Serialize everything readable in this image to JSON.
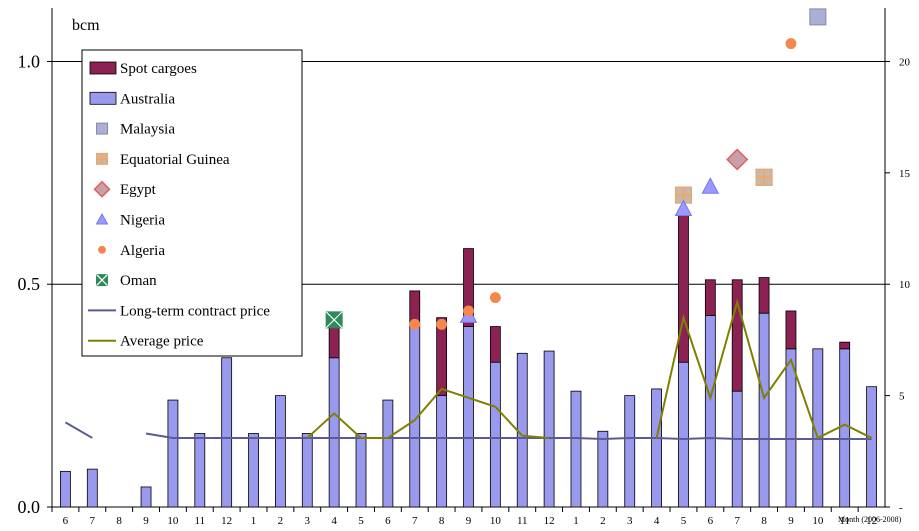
{
  "chart_data": {
    "type": "bar",
    "unit_label": "bcm",
    "x_axis_note": "Month (2006-2008)",
    "categories": [
      "6",
      "7",
      "8",
      "9",
      "10",
      "11",
      "12",
      "1",
      "2",
      "3",
      "4",
      "5",
      "6",
      "7",
      "8",
      "9",
      "10",
      "11",
      "12",
      "1",
      "2",
      "3",
      "4",
      "5",
      "6",
      "7",
      "8",
      "9",
      "10",
      "11",
      "12"
    ],
    "left_axis": {
      "ticks": [
        "0.0",
        "0.5",
        "1.0"
      ],
      "ylim": [
        0,
        1.12
      ]
    },
    "right_axis": {
      "ticks": [
        "-",
        "5",
        "10",
        "15",
        "20"
      ],
      "ylim": [
        0,
        22.4
      ]
    },
    "grid": true,
    "legend_position": "top-left",
    "stacked_series": [
      {
        "name": "Australia",
        "color": "#9999ee",
        "values": [
          0.08,
          0.085,
          0,
          0.045,
          0.24,
          0.165,
          0.335,
          0.165,
          0.25,
          0.165,
          0.335,
          0.165,
          0.24,
          0.405,
          0.25,
          0.405,
          0.325,
          0.345,
          0.35,
          0.26,
          0.17,
          0.25,
          0.265,
          0.325,
          0.43,
          0.26,
          0.435,
          0.355,
          0.355,
          0.355,
          0.27
        ]
      },
      {
        "name": "Spot cargoes",
        "color": "#8b2252",
        "values": [
          0,
          0,
          0,
          0,
          0,
          0,
          0,
          0,
          0,
          0,
          0.075,
          0,
          0,
          0.08,
          0.175,
          0.175,
          0.08,
          0,
          0,
          0,
          0,
          0,
          0,
          0.335,
          0.08,
          0.25,
          0.08,
          0.085,
          0,
          0.015,
          0
        ]
      }
    ],
    "marker_series": [
      {
        "name": "Malaysia",
        "marker": "square",
        "color": "#aab0d4",
        "stroke": "#8888aa",
        "points": [
          {
            "x": 23,
            "y": 0.7
          },
          {
            "x": 26,
            "y": 0.74
          },
          {
            "x": 28,
            "y": 1.1
          }
        ]
      },
      {
        "name": "Equatorial Guinea",
        "marker": "square-cross",
        "color": "#c8b8a8",
        "stroke": "#f4a460",
        "points": [
          {
            "x": 23,
            "y": 0.7
          },
          {
            "x": 26,
            "y": 0.74
          }
        ]
      },
      {
        "name": "Egypt",
        "marker": "diamond",
        "color": "#c8a0a8",
        "stroke": "#e06060",
        "points": [
          {
            "x": 25,
            "y": 0.78
          }
        ]
      },
      {
        "name": "Nigeria",
        "marker": "triangle",
        "color": "#9999ff",
        "stroke": "#7777ee",
        "points": [
          {
            "x": 15,
            "y": 0.43
          },
          {
            "x": 23,
            "y": 0.67
          },
          {
            "x": 24,
            "y": 0.72
          }
        ]
      },
      {
        "name": "Algeria",
        "marker": "circle",
        "color": "#f4884c",
        "stroke": "#f4884c",
        "points": [
          {
            "x": 13,
            "y": 0.41
          },
          {
            "x": 14,
            "y": 0.41
          },
          {
            "x": 15,
            "y": 0.44
          },
          {
            "x": 16,
            "y": 0.47
          },
          {
            "x": 27,
            "y": 1.04
          }
        ]
      },
      {
        "name": "Oman",
        "marker": "square-x",
        "color": "#2e8b57",
        "stroke": "#2e8b57",
        "points": [
          {
            "x": 10,
            "y": 0.42
          }
        ]
      }
    ],
    "line_series": [
      {
        "name": "Long-term contract price",
        "color": "#5a5a96",
        "axis": "right",
        "values": [
          3.8,
          3.1,
          null,
          3.3,
          3.1,
          3.1,
          3.1,
          3.1,
          3.1,
          3.1,
          3.1,
          3.1,
          3.1,
          3.1,
          3.1,
          3.1,
          3.1,
          3.1,
          3.1,
          3.1,
          3.05,
          3.1,
          3.1,
          3.05,
          3.1,
          3.05,
          3.05,
          3.05,
          3.05,
          3.05,
          3.05
        ]
      },
      {
        "name": "Average price",
        "color": "#808000",
        "axis": "right",
        "values": [
          null,
          null,
          null,
          null,
          null,
          null,
          null,
          null,
          null,
          null,
          null,
          null,
          null,
          null,
          null,
          null,
          null,
          null,
          null,
          null,
          null,
          null,
          null,
          null,
          null,
          null,
          null,
          null,
          null,
          null,
          null
        ],
        "segments": [
          {
            "start": 9,
            "values": [
              3.1,
              4.2,
              3.1,
              3.1,
              3.9,
              5.3,
              4.9,
              4.5,
              3.2,
              3.1
            ]
          },
          {
            "start": 22,
            "values": [
              3.1,
              8.5,
              4.9,
              9.2,
              4.9,
              6.6,
              3.1,
              3.7,
              3.1
            ]
          }
        ]
      }
    ],
    "legend": [
      "Spot cargoes",
      "Australia",
      "Malaysia",
      "Equatorial Guinea",
      "Egypt",
      "Nigeria",
      "Algeria",
      "Oman",
      "Long-term contract price",
      "Average price"
    ]
  }
}
